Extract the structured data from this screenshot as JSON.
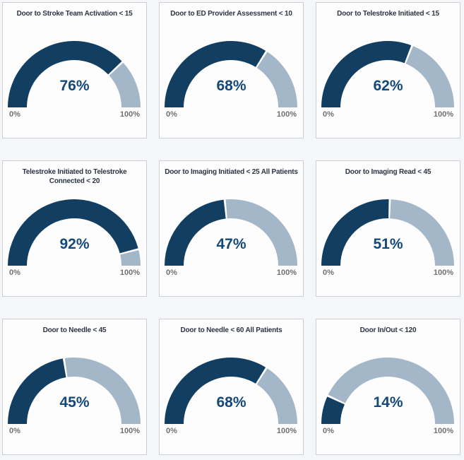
{
  "colors": {
    "page_background": "#f5f6f8",
    "card_background": "#fdfdfe",
    "card_border": "#ccd0d4",
    "gauge_filled": "#123e62",
    "gauge_remainder": "#a3b7c9",
    "title_text": "#2c3540",
    "value_text": "#144879",
    "axis_label_text": "#707070"
  },
  "chart_data": [
    {
      "type": "gauge",
      "title": "Door to Stroke Team Activation < 15",
      "value": 76,
      "value_label": "76%",
      "min": 0,
      "max": 100,
      "min_label": "0%",
      "max_label": "100%"
    },
    {
      "type": "gauge",
      "title": "Door to ED Provider Assessment < 10",
      "value": 68,
      "value_label": "68%",
      "min": 0,
      "max": 100,
      "min_label": "0%",
      "max_label": "100%"
    },
    {
      "type": "gauge",
      "title": "Door to Telestroke Initiated < 15",
      "value": 62,
      "value_label": "62%",
      "min": 0,
      "max": 100,
      "min_label": "0%",
      "max_label": "100%"
    },
    {
      "type": "gauge",
      "title": "Telestroke Initiated to Telestroke Connected < 20",
      "value": 92,
      "value_label": "92%",
      "min": 0,
      "max": 100,
      "min_label": "0%",
      "max_label": "100%"
    },
    {
      "type": "gauge",
      "title": "Door to Imaging Initiated < 25 All Patients",
      "value": 47,
      "value_label": "47%",
      "min": 0,
      "max": 100,
      "min_label": "0%",
      "max_label": "100%"
    },
    {
      "type": "gauge",
      "title": "Door to Imaging Read < 45",
      "value": 51,
      "value_label": "51%",
      "min": 0,
      "max": 100,
      "min_label": "0%",
      "max_label": "100%"
    },
    {
      "type": "gauge",
      "title": "Door to Needle < 45",
      "value": 45,
      "value_label": "45%",
      "min": 0,
      "max": 100,
      "min_label": "0%",
      "max_label": "100%"
    },
    {
      "type": "gauge",
      "title": "Door to Needle < 60 All Patients",
      "value": 68,
      "value_label": "68%",
      "min": 0,
      "max": 100,
      "min_label": "0%",
      "max_label": "100%"
    },
    {
      "type": "gauge",
      "title": "Door In/Out < 120",
      "value": 14,
      "value_label": "14%",
      "min": 0,
      "max": 100,
      "min_label": "0%",
      "max_label": "100%"
    }
  ]
}
